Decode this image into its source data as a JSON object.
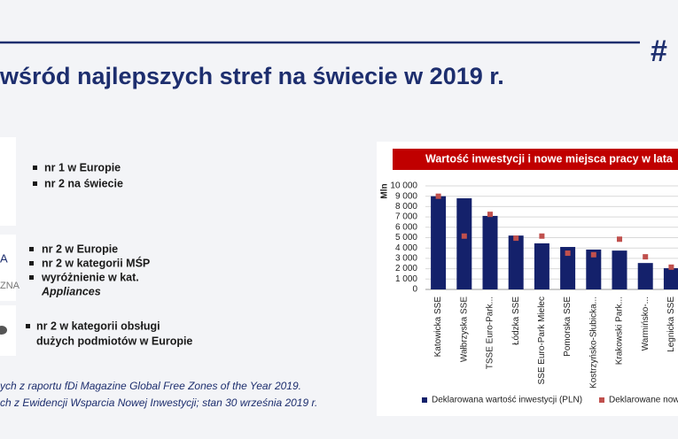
{
  "header": {
    "title": "wśród najlepszych stref na świecie w 2019 r.",
    "hashtag": "#"
  },
  "awards": [
    {
      "items": [
        "nr 1 w Europie",
        "nr 2 na świecie"
      ]
    },
    {
      "logo": [
        "A",
        "ZNA"
      ],
      "items": [
        "nr 2 w Europie",
        "nr 2 w kategorii MŚP",
        "wyróżnienie w kat."
      ],
      "note": "Appliances"
    },
    {
      "items": [
        "nr 2 w kategorii obsługi",
        "dużych podmiotów w Europie"
      ]
    }
  ],
  "footnotes": [
    "ych z raportu fDi Magazine Global Free Zones of the Year 2019.",
    "ch z Ewidencji Wsparcia Nowej Inwestycji; stan 30 września 2019 r."
  ],
  "chart_data": {
    "type": "bar",
    "title": "Wartość inwestycji i nowe miejsca pracy w lata",
    "y_label": "Mln",
    "categories": [
      "Katowicka SSE",
      "Wałbrzyska SSE",
      "TSSE Euro-Park...",
      "Łódzka SSE",
      "SSE Euro-Park Mielec",
      "Pomorska SSE",
      "Kostrzyńsko-Słubicka...",
      "Krakowski Park...",
      "Warmińsko-...",
      "Legnicka SSE"
    ],
    "series": [
      {
        "name": "Deklarowana wartość inwestycji (PLN)",
        "color": "#14216b",
        "mark": "bar",
        "values": [
          9000,
          8800,
          7100,
          5200,
          4450,
          4100,
          3850,
          3750,
          2550,
          2050
        ]
      },
      {
        "name": "Deklarowane nowe",
        "color": "#c0504d",
        "mark": "square",
        "values": [
          9000,
          5150,
          7250,
          4950,
          5150,
          3500,
          3350,
          4850,
          3150,
          2150
        ]
      }
    ],
    "ylim": [
      0,
      10000
    ],
    "yticks": [
      0,
      {
        "value": 1000,
        "label": "1 000"
      },
      {
        "value": 2000,
        "label": "2 000"
      },
      {
        "value": 3000,
        "label": "3 000"
      },
      {
        "value": 4000,
        "label": "4 000"
      },
      {
        "value": 5000,
        "label": "5 000"
      },
      {
        "value": 6000,
        "label": "6 000"
      },
      {
        "value": 7000,
        "label": "7 000"
      },
      {
        "value": 8000,
        "label": "8 000"
      },
      {
        "value": 9000,
        "label": "9 000"
      },
      {
        "value": 10000,
        "label": "10 000"
      }
    ],
    "grid": true
  }
}
